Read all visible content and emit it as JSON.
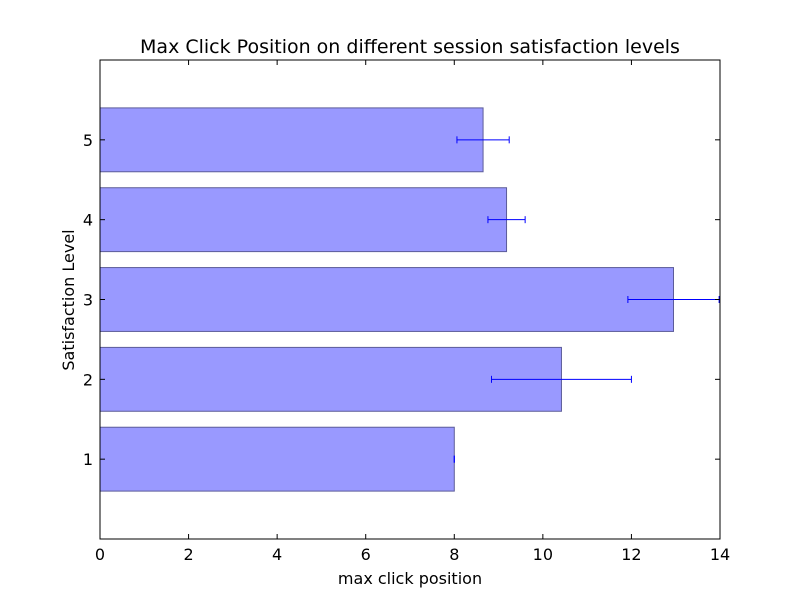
{
  "chart_data": {
    "type": "bar",
    "orientation": "horizontal",
    "title": "Max Click Position on different session satisfaction levels",
    "xlabel": "max click position",
    "ylabel": "Satisfaction Level",
    "xlim": [
      0,
      14
    ],
    "ylim": [
      0,
      6
    ],
    "xticks": [
      "0",
      "2",
      "4",
      "6",
      "8",
      "10",
      "12",
      "14"
    ],
    "categories": [
      "1",
      "2",
      "3",
      "4",
      "5"
    ],
    "values": [
      8.0,
      10.42,
      12.95,
      9.18,
      8.65
    ],
    "errors": [
      0.0,
      1.58,
      1.03,
      0.42,
      0.59
    ],
    "grid": false,
    "legend": "none",
    "colors": {
      "bar_fill": "#9999ff",
      "bar_edge": "#5c5c99",
      "error_bar": "#0000ff"
    }
  }
}
